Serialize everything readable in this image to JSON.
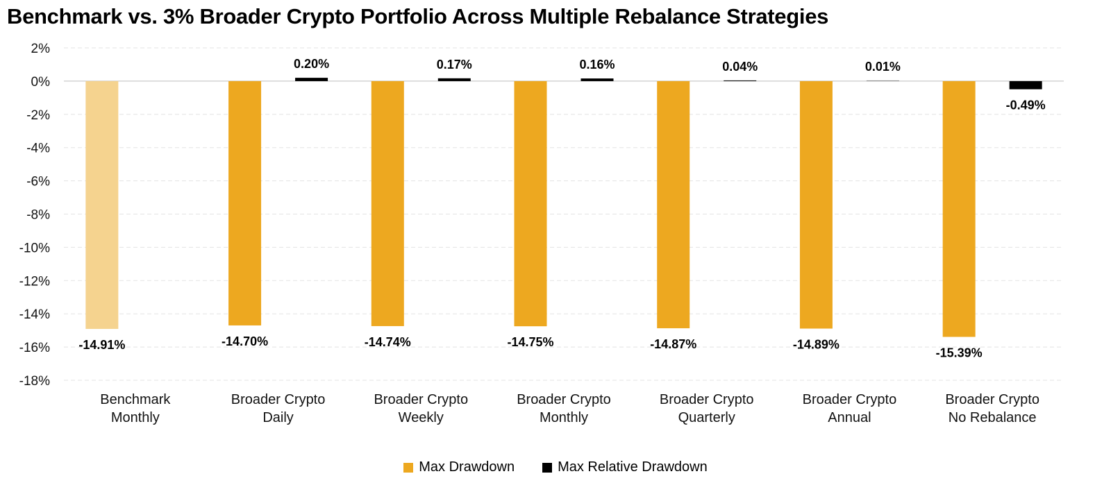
{
  "chart_data": {
    "type": "bar",
    "title": "Benchmark vs. 3% Broader Crypto Portfolio Across Multiple Rebalance Strategies",
    "categories": [
      [
        "Benchmark",
        "Monthly"
      ],
      [
        "Broader Crypto",
        "Daily"
      ],
      [
        "Broader Crypto",
        "Weekly"
      ],
      [
        "Broader Crypto",
        "Monthly"
      ],
      [
        "Broader Crypto",
        "Quarterly"
      ],
      [
        "Broader Crypto",
        "Annual"
      ],
      [
        "Broader Crypto",
        "No Rebalance"
      ]
    ],
    "ylim": [
      -18,
      2
    ],
    "yticks": [
      2,
      0,
      -2,
      -4,
      -6,
      -8,
      -10,
      -12,
      -14,
      -16,
      -18
    ],
    "ytick_labels": [
      "2%",
      "0%",
      "-2%",
      "-4%",
      "-6%",
      "-8%",
      "-10%",
      "-12%",
      "-14%",
      "-16%",
      "-18%"
    ],
    "grid": true,
    "legend_position": "bottom-center",
    "series": [
      {
        "name": "Max Drawdown",
        "color": "#EDA820",
        "first_bar_color": "#F5D38F",
        "values": [
          -14.91,
          -14.7,
          -14.74,
          -14.75,
          -14.87,
          -14.89,
          -15.39
        ],
        "labels": [
          "-14.91%",
          "-14.70%",
          "-14.74%",
          "-14.75%",
          "-14.87%",
          "-14.89%",
          "-15.39%"
        ]
      },
      {
        "name": "Max Relative Drawdown",
        "color": "#000000",
        "values": [
          null,
          0.2,
          0.17,
          0.16,
          0.04,
          0.01,
          -0.49
        ],
        "labels": [
          null,
          "0.20%",
          "0.17%",
          "0.16%",
          "0.04%",
          "0.01%",
          "-0.49%"
        ]
      }
    ]
  }
}
